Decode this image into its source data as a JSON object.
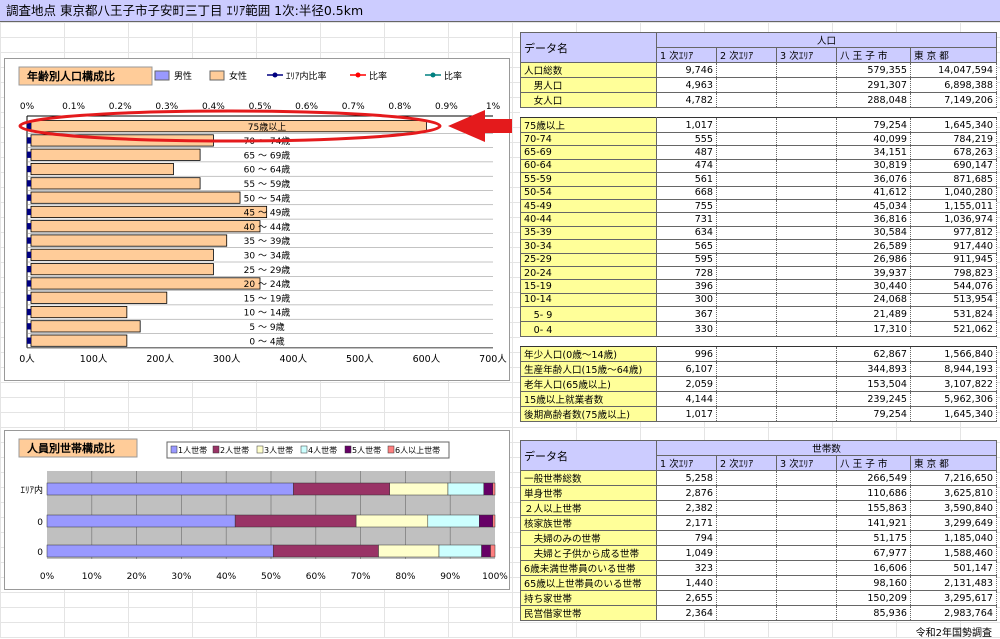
{
  "header": {
    "title": "調査地点 東京都八王子市子安町三丁目 ｴﾘｱ範囲 1次:半径0.5km"
  },
  "pop_chart": {
    "title": "年齢別人口構成比",
    "legend": [
      {
        "label": "男性",
        "color": "#9999ff"
      },
      {
        "label": "女性",
        "color": "#ffcc99"
      },
      {
        "label": "ｴﾘｱ内比率",
        "color": "#000080"
      },
      {
        "label": "比率",
        "color": "#ff0000"
      },
      {
        "label": "比率",
        "color": "#008080"
      }
    ],
    "top_ticks": [
      "0%",
      "0.1%",
      "0.2%",
      "0.3%",
      "0.4%",
      "0.5%",
      "0.6%",
      "0.7%",
      "0.8%",
      "0.9%",
      "1%"
    ],
    "bottom_ticks": [
      "0人",
      "100人",
      "200人",
      "300人",
      "400人",
      "500人",
      "600人",
      "700人"
    ]
  },
  "hh_chart": {
    "title": "人員別世帯構成比",
    "legend": [
      {
        "label": "1人世帯",
        "color": "#9999ff"
      },
      {
        "label": "2人世帯",
        "color": "#993366"
      },
      {
        "label": "3人世帯",
        "color": "#ffffcc"
      },
      {
        "label": "4人世帯",
        "color": "#ccffff"
      },
      {
        "label": "5人世帯",
        "color": "#660066"
      },
      {
        "label": "6人以上世帯",
        "color": "#ff8080"
      }
    ],
    "row_labels": [
      "ｴﾘｱ内",
      "0",
      "0"
    ],
    "x_ticks": [
      "0%",
      "10%",
      "20%",
      "30%",
      "40%",
      "50%",
      "60%",
      "70%",
      "80%",
      "90%",
      "100%"
    ]
  },
  "chart_data": [
    {
      "type": "bar",
      "title": "年齢別人口構成比",
      "orientation": "horizontal",
      "categories": [
        "75歳以上",
        "70 ～ 74歳",
        "65 ～ 69歳",
        "60 ～ 64歳",
        "55 ～ 59歳",
        "50 ～ 54歳",
        "45 ～ 49歳",
        "40 ～ 44歳",
        "35 ～ 39歳",
        "30 ～ 34歳",
        "25 ～ 29歳",
        "20 ～ 24歳",
        "15 ～ 19歳",
        "10 ～ 14歳",
        "5 ～ 9歳",
        "0 ～ 4歳"
      ],
      "series": [
        {
          "name": "女性",
          "values": [
            600,
            280,
            260,
            220,
            260,
            320,
            360,
            350,
            300,
            280,
            280,
            350,
            210,
            150,
            170,
            150
          ]
        }
      ],
      "xlim": [
        0,
        700
      ]
    },
    {
      "type": "bar",
      "title": "人員別世帯構成比",
      "stacked": true,
      "orientation": "horizontal",
      "categories": [
        "ｴﾘｱ内",
        "0",
        "0"
      ],
      "series": [
        {
          "name": "1人世帯",
          "values": [
            55,
            42,
            50.5
          ]
        },
        {
          "name": "2人世帯",
          "values": [
            21.5,
            27,
            23.5
          ]
        },
        {
          "name": "3人世帯",
          "values": [
            13,
            16,
            13.5
          ]
        },
        {
          "name": "4人世帯",
          "values": [
            8,
            11.5,
            9.5
          ]
        },
        {
          "name": "5人世帯",
          "values": [
            2,
            3,
            2
          ]
        },
        {
          "name": "6人以上世帯",
          "values": [
            0.5,
            0.5,
            1
          ]
        }
      ],
      "xlim": [
        0,
        100
      ]
    }
  ],
  "pop_table": {
    "data_name": "データ名",
    "group": "人口",
    "cols": [
      "1 次ｴﾘｱ",
      "2 次ｴﾘｱ",
      "3 次ｴﾘｱ",
      "八 王 子 市",
      "東 京 都"
    ],
    "sec1": [
      [
        "人口総数",
        "9,746",
        "579,355",
        "14,047,594"
      ],
      [
        "　男人口",
        "4,963",
        "291,307",
        "6,898,388"
      ],
      [
        "　女人口",
        "4,782",
        "288,048",
        "7,149,206"
      ]
    ],
    "sec2": [
      [
        "75歳以上",
        "1,017",
        "79,254",
        "1,645,340"
      ],
      [
        "70-74",
        "555",
        "40,099",
        "784,219"
      ],
      [
        "65-69",
        "487",
        "34,151",
        "678,263"
      ],
      [
        "60-64",
        "474",
        "30,819",
        "690,147"
      ],
      [
        "55-59",
        "561",
        "36,076",
        "871,685"
      ],
      [
        "50-54",
        "668",
        "41,612",
        "1,040,280"
      ],
      [
        "45-49",
        "755",
        "45,034",
        "1,155,011"
      ],
      [
        "40-44",
        "731",
        "36,816",
        "1,036,974"
      ],
      [
        "35-39",
        "634",
        "30,584",
        "977,812"
      ],
      [
        "30-34",
        "565",
        "26,589",
        "917,440"
      ],
      [
        "25-29",
        "595",
        "26,986",
        "911,945"
      ],
      [
        "20-24",
        "728",
        "39,937",
        "798,823"
      ],
      [
        "15-19",
        "396",
        "30,440",
        "544,076"
      ],
      [
        "10-14",
        "300",
        "24,068",
        "513,954"
      ],
      [
        "　5- 9",
        "367",
        "21,489",
        "531,824"
      ],
      [
        "　0- 4",
        "330",
        "17,310",
        "521,062"
      ]
    ],
    "sec3": [
      [
        "年少人口(0歳～14歳)",
        "996",
        "62,867",
        "1,566,840"
      ],
      [
        "生産年齢人口(15歳～64歳)",
        "6,107",
        "344,893",
        "8,944,193"
      ],
      [
        "老年人口(65歳以上)",
        "2,059",
        "153,504",
        "3,107,822"
      ],
      [
        "15歳以上就業者数",
        "4,144",
        "239,245",
        "5,962,306"
      ],
      [
        "後期高齢者数(75歳以上)",
        "1,017",
        "79,254",
        "1,645,340"
      ]
    ]
  },
  "hh_table": {
    "data_name": "データ名",
    "group": "世帯数",
    "cols": [
      "1 次ｴﾘｱ",
      "2 次ｴﾘｱ",
      "3 次ｴﾘｱ",
      "八 王 子 市",
      "東 京 都"
    ],
    "rows": [
      [
        "一般世帯総数",
        "5,258",
        "266,549",
        "7,216,650"
      ],
      [
        "単身世帯",
        "2,876",
        "110,686",
        "3,625,810"
      ],
      [
        "２人以上世帯",
        "2,382",
        "155,863",
        "3,590,840"
      ],
      [
        "核家族世帯",
        "2,171",
        "141,921",
        "3,299,649"
      ],
      [
        "　夫婦のみの世帯",
        "794",
        "51,175",
        "1,185,040"
      ],
      [
        "　夫婦と子供から成る世帯",
        "1,049",
        "67,977",
        "1,588,460"
      ],
      [
        "6歳未満世帯員のいる世帯",
        "323",
        "16,606",
        "501,147"
      ],
      [
        "65歳以上世帯員のいる世帯",
        "1,440",
        "98,160",
        "2,131,483"
      ],
      [
        "持ち家世帯",
        "2,655",
        "150,209",
        "3,295,617"
      ],
      [
        "民営借家世帯",
        "2,364",
        "85,936",
        "2,983,764"
      ]
    ]
  },
  "footer": "令和2年国勢調査"
}
